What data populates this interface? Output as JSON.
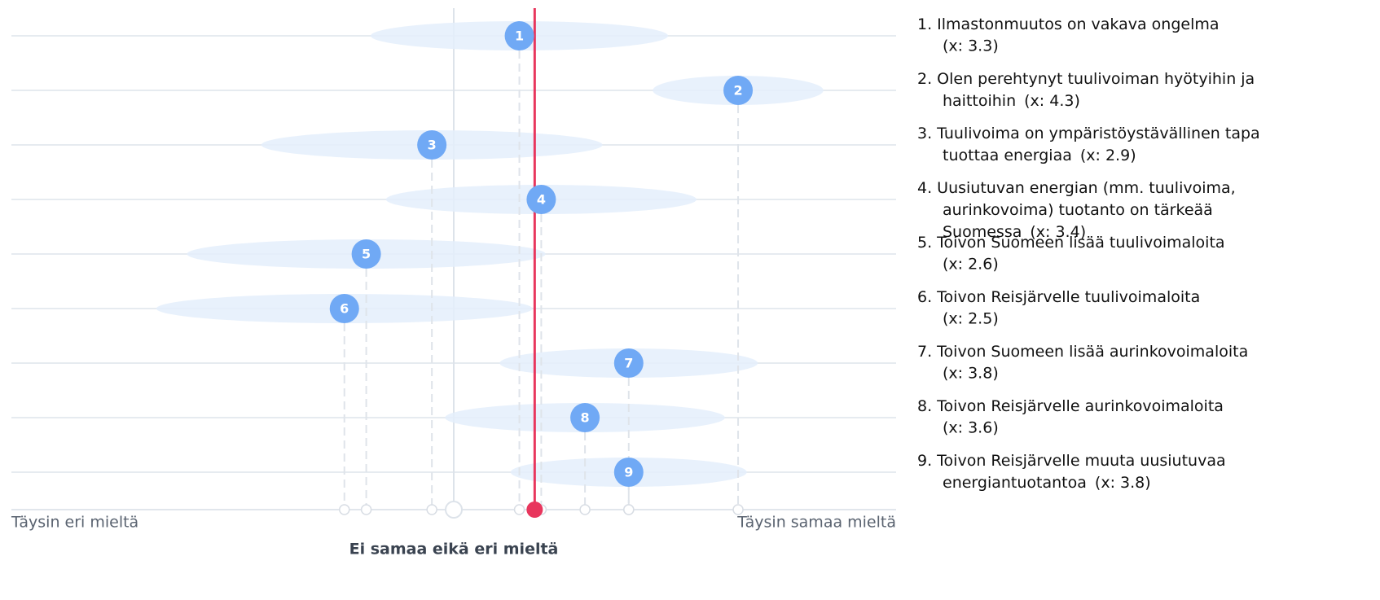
{
  "chart_data": {
    "type": "dotplot",
    "categories": [
      "1",
      "2",
      "3",
      "4",
      "5",
      "6",
      "7",
      "8",
      "9"
    ],
    "values": [
      3.3,
      4.3,
      2.9,
      3.4,
      2.6,
      2.5,
      3.8,
      3.6,
      3.8
    ],
    "spread": [
      0.68,
      0.39,
      0.78,
      0.71,
      0.82,
      0.86,
      0.59,
      0.64,
      0.54
    ],
    "value_labels": [
      "(x: 3.3)",
      "(x: 4.3)",
      "(x: 2.9)",
      "(x: 3.4)",
      "(x: 2.6)",
      "(x: 2.5)",
      "(x: 3.8)",
      "(x: 3.6)",
      "(x: 3.8)"
    ],
    "legend": [
      [
        "1.  Ilmastonmuutos on vakava ongelma"
      ],
      [
        "2. Olen perehtynyt tuulivoiman hyötyihin ja",
        "haittoihin"
      ],
      [
        "3. Tuulivoima on ympäristöystävällinen tapa",
        "tuottaa energiaa"
      ],
      [
        "4. Uusiutuvan energian (mm. tuulivoima,",
        "aurinkovoima) tuotanto on tärkeää",
        "Suomessa"
      ],
      [
        "5. Toivon Suomeen lisää tuulivoimaloita"
      ],
      [
        "6. Toivon Reisjärvelle tuulivoimaloita"
      ],
      [
        "7. Toivon Suomeen lisää aurinkovoimaloita"
      ],
      [
        "8. Toivon Reisjärvelle aurinkovoimaloita"
      ],
      [
        "9. Toivon Reisjärvelle muuta uusiutuvaa",
        "energiantuotantoa"
      ]
    ],
    "reference_line": 3.37,
    "xlim": [
      1,
      5
    ],
    "xticks": [
      {
        "value": 1,
        "label": "Täysin eri mieltä"
      },
      {
        "value": 3,
        "label": "Ei samaa eikä eri mieltä"
      },
      {
        "value": 5,
        "label": "Täysin samaa mieltä"
      }
    ],
    "color": "#70a9f5",
    "spread_color": "#e4eefb",
    "reference_color": "#e8365d"
  }
}
